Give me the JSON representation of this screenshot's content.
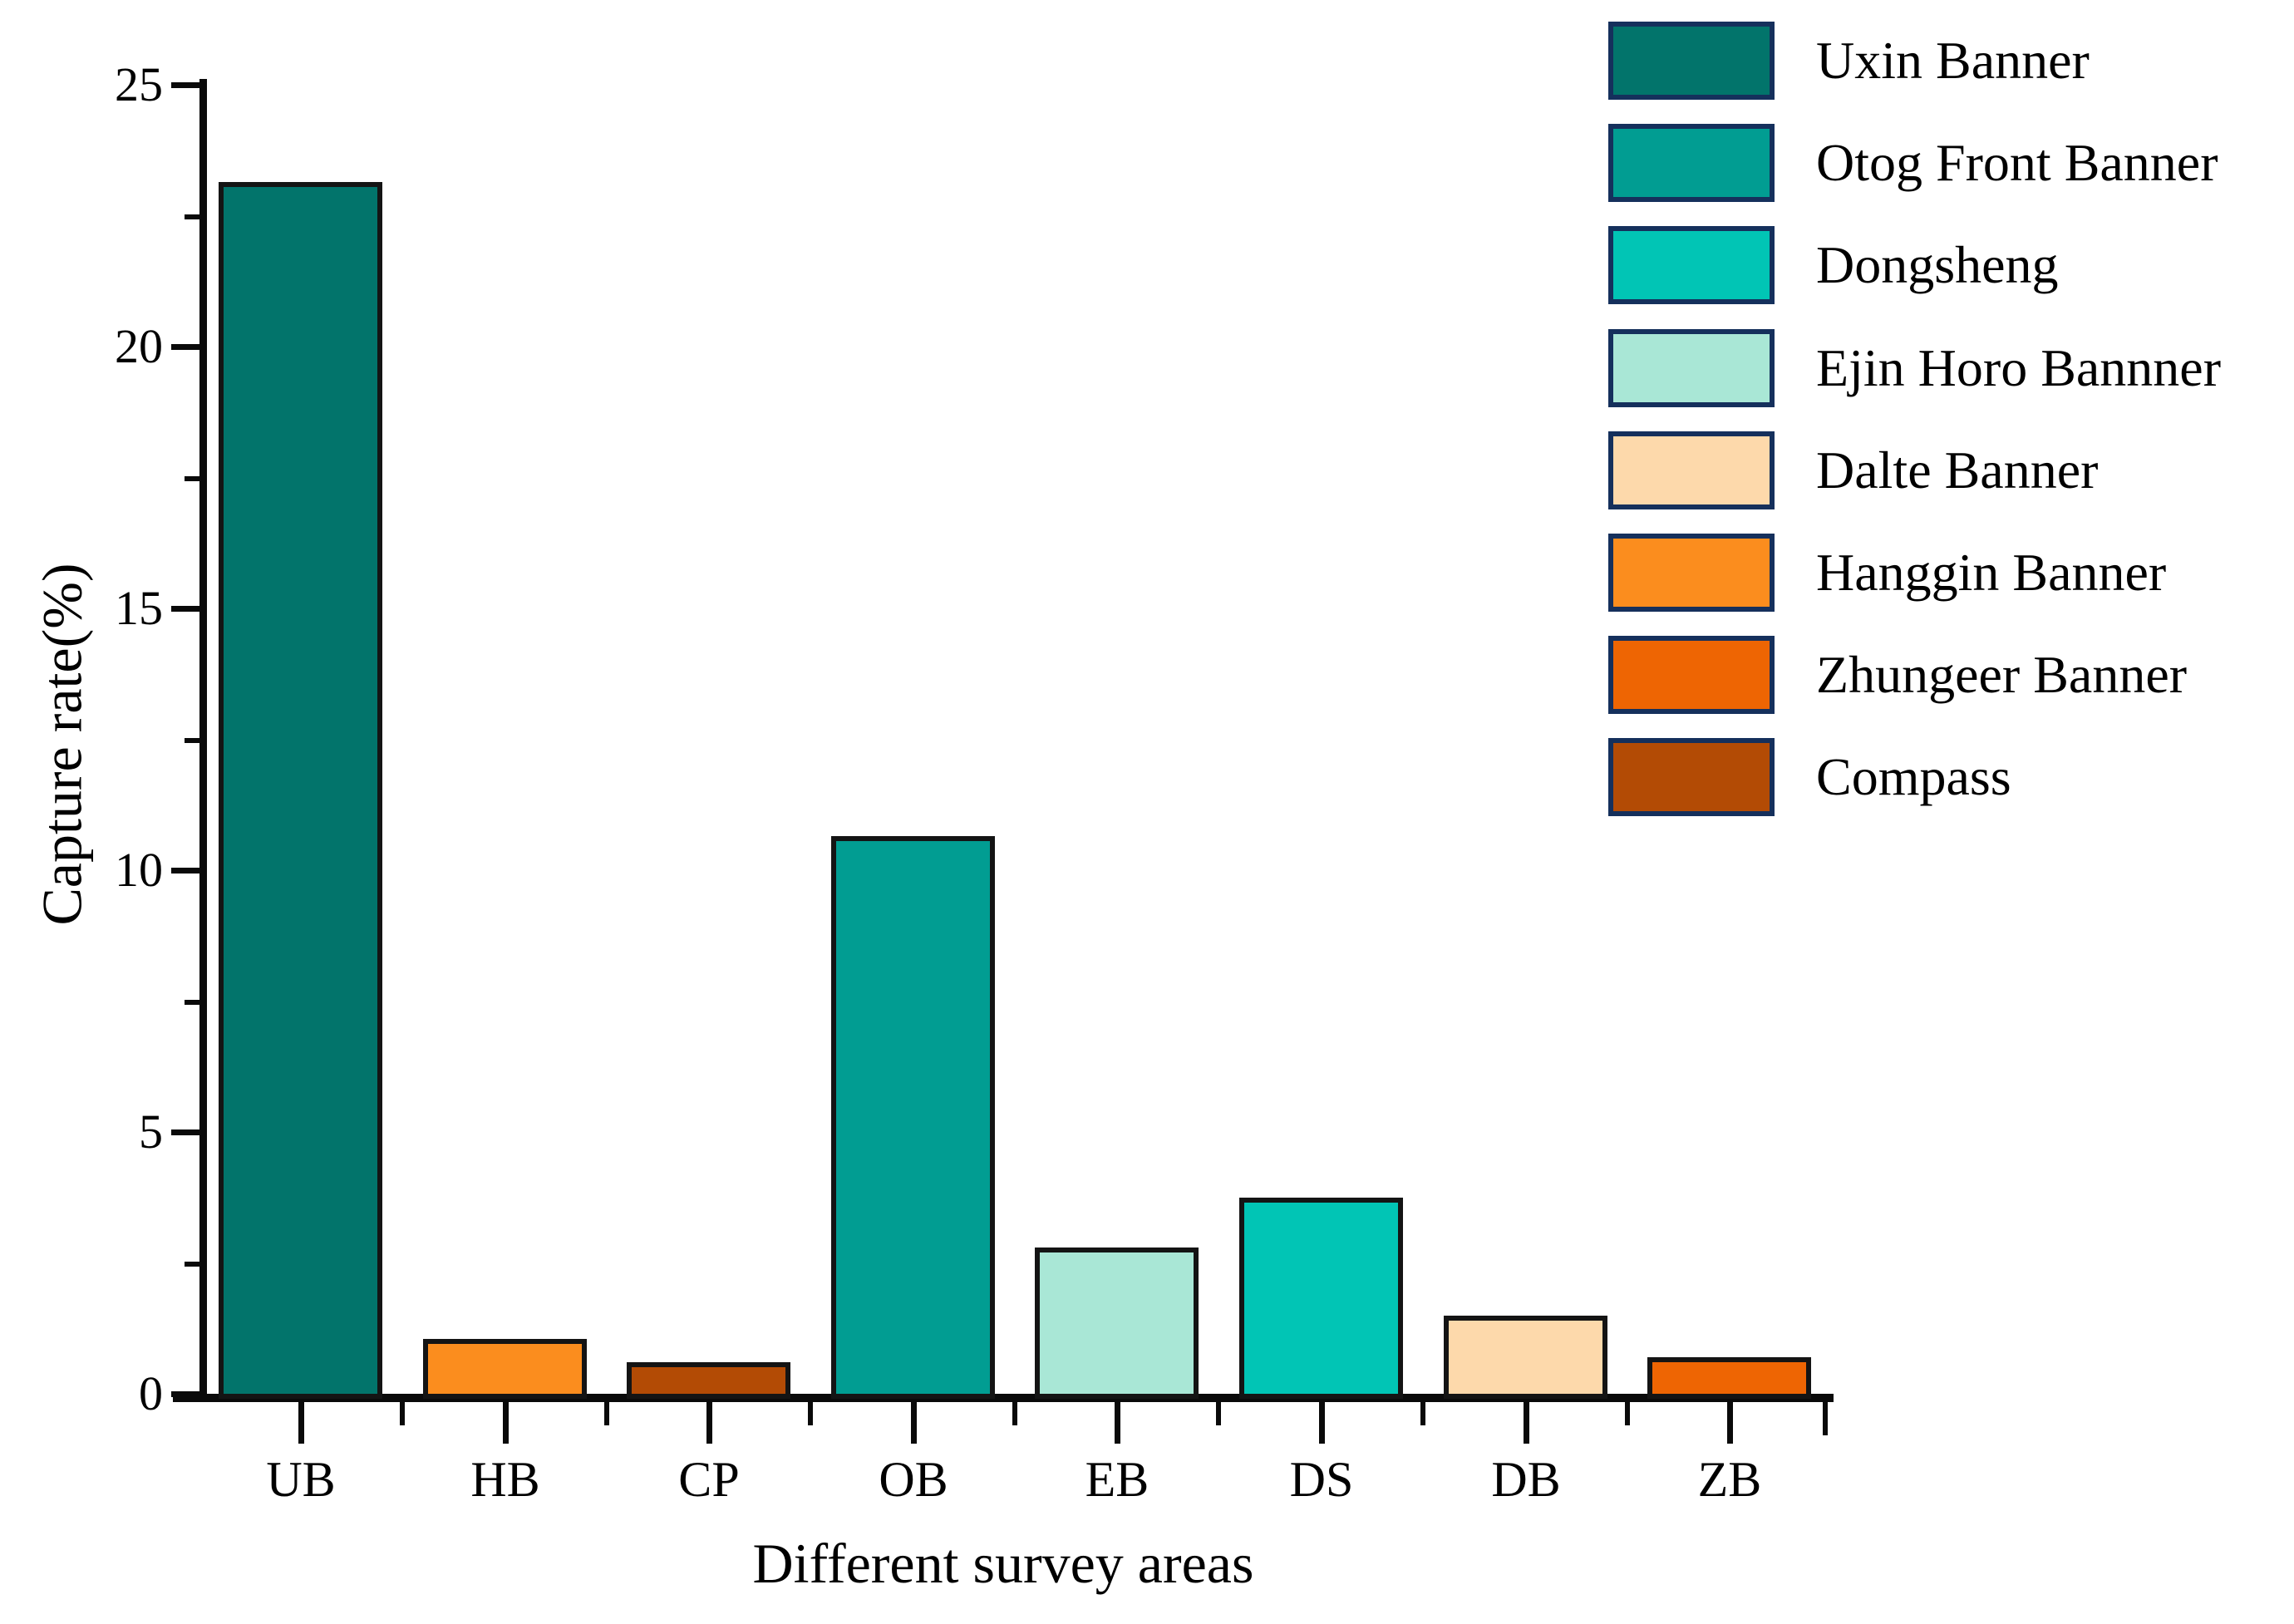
{
  "figure": {
    "background": "#ffffff",
    "text_color": "#000000"
  },
  "chart_data": {
    "type": "bar",
    "title": "",
    "xlabel": "Different survey areas",
    "ylabel": "Capture rate(%)",
    "categories": [
      "UB",
      "HB",
      "CP",
      "OB",
      "EB",
      "DS",
      "DB",
      "ZB"
    ],
    "values": [
      23.1,
      1.0,
      0.55,
      10.6,
      2.75,
      3.7,
      1.45,
      0.65
    ],
    "bar_colors": [
      "#02746b",
      "#fb8d1e",
      "#b34b05",
      "#019d92",
      "#a9e7d6",
      "#01c5b5",
      "#fdd9ab",
      "#ee6503"
    ],
    "ylim": [
      0,
      25
    ],
    "y_major_ticks": [
      0,
      5,
      10,
      15,
      20,
      25
    ],
    "y_minor_ticks": [
      2.5,
      7.5,
      12.5,
      17.5,
      22.5
    ],
    "grid": false,
    "legend_position": "top-right",
    "legend": [
      {
        "label": "Uxin Banner",
        "color": "#02746b"
      },
      {
        "label": "Otog Front Banner",
        "color": "#019d92"
      },
      {
        "label": "Dongsheng",
        "color": "#01c5b5"
      },
      {
        "label": "Ejin Horo Bannner",
        "color": "#a9e7d6"
      },
      {
        "label": "Dalte Banner",
        "color": "#fdd9ab"
      },
      {
        "label": "Hanggin Banner",
        "color": "#fb8d1e"
      },
      {
        "label": "Zhungeer Banner",
        "color": "#ee6503"
      },
      {
        "label": "Compass",
        "color": "#b34b05"
      }
    ],
    "series_by_bar": [
      {
        "category": "UB",
        "legend_label": "Uxin Banner",
        "value": 23.1
      },
      {
        "category": "HB",
        "legend_label": "Hanggin Banner",
        "value": 1.0
      },
      {
        "category": "CP",
        "legend_label": "Compass",
        "value": 0.55
      },
      {
        "category": "OB",
        "legend_label": "Otog Front Banner",
        "value": 10.6
      },
      {
        "category": "EB",
        "legend_label": "Ejin Horo Bannner",
        "value": 2.75
      },
      {
        "category": "DS",
        "legend_label": "Dongsheng",
        "value": 3.7
      },
      {
        "category": "DB",
        "legend_label": "Dalte Banner",
        "value": 1.45
      },
      {
        "category": "ZB",
        "legend_label": "Zhungeer Banner",
        "value": 0.65
      }
    ]
  },
  "y_axis": {
    "title": "Capture rate(%)",
    "tick_labels": [
      "0",
      "5",
      "10",
      "15",
      "20",
      "25"
    ]
  },
  "x_axis": {
    "title": "Different survey areas"
  }
}
